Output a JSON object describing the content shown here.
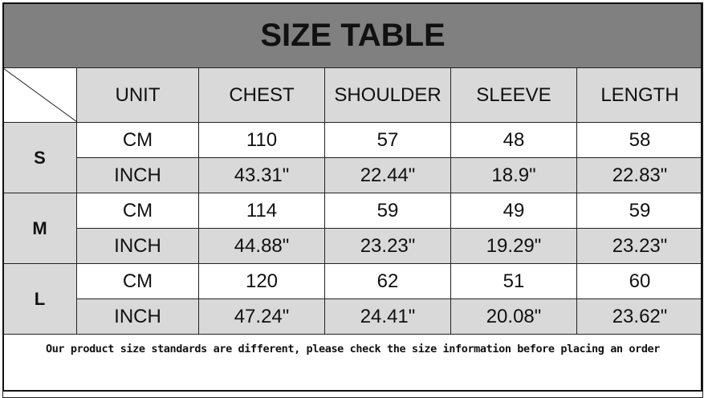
{
  "title": "SIZE TABLE",
  "headers": [
    "UNIT",
    "CHEST",
    "SHOULDER",
    "SLEEVE",
    "LENGTH"
  ],
  "sizes": [
    {
      "size": "S",
      "rows": [
        [
          "CM",
          "110",
          "57",
          "48",
          "58"
        ],
        [
          "INCH",
          "43.31\"",
          "22.44\"",
          "18.9\"",
          "22.83\""
        ]
      ]
    },
    {
      "size": "M",
      "rows": [
        [
          "CM",
          "114",
          "59",
          "49",
          "59"
        ],
        [
          "INCH",
          "44.88\"",
          "23.23\"",
          "19.29\"",
          "23.23\""
        ]
      ]
    },
    {
      "size": "L",
      "rows": [
        [
          "CM",
          "120",
          "62",
          "51",
          "60"
        ],
        [
          "INCH",
          "47.24\"",
          "24.41\"",
          "20.08\"",
          "23.62\""
        ]
      ]
    }
  ],
  "note": "Our product size standards are different, please check the size information before placing an order",
  "colors": {
    "title_bg": "#808080",
    "header_bg": "#d9d9d9"
  }
}
